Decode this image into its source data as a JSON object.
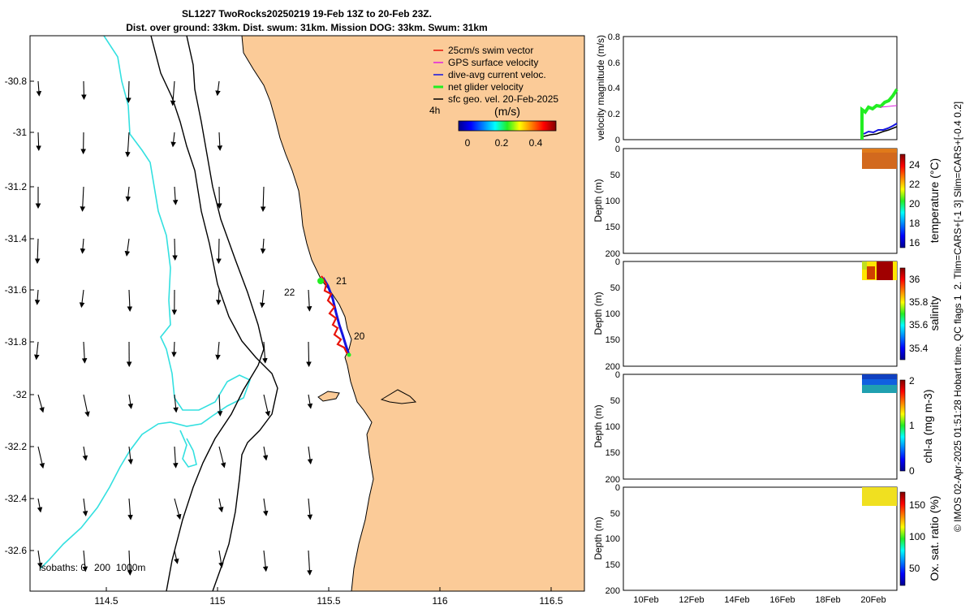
{
  "title": {
    "line1": "SL1227 TwoRocks20250219 19-Feb 13Z to 20-Feb 23Z.",
    "line2": "Dist. over ground: 33km. Dist. swum: 31km. Mission DOG: 33km. Swum: 31km"
  },
  "side_caption": "© IMOS 02-Apr-2025 01:51:28 Hobart time. QC flags 1  2. Tlim=CARS+[-1 3] Slim=CARS+[-0.4 0.2]",
  "map": {
    "lon_ticks": [
      114.5,
      115,
      115.5,
      116,
      116.5
    ],
    "lon_tick_labels": [
      "114.5",
      "115",
      "115.5",
      "116",
      "116.5"
    ],
    "lat_ticks": [
      -30.8,
      -31,
      -31.2,
      -31.4,
      -31.6,
      -31.8,
      -32,
      -32.2,
      -32.4,
      -32.6
    ],
    "lat_tick_labels": [
      "-30.8",
      "-31",
      "-31.2",
      "-31.4",
      "-31.6",
      "-31.8",
      "-32",
      "-32.2",
      "-32.4",
      "-32.6"
    ],
    "isobaths_label": "isobaths: 0   200  1000m",
    "land_color": "#fbcb98",
    "sea_color": "#ffffff",
    "isobath_1000_color": "#33e0e0",
    "legend": [
      {
        "label": "25cm/s swim vector",
        "color": "#e8140a"
      },
      {
        "label": "GPS surface velocity",
        "color": "#e020e0"
      },
      {
        "label": "dive-avg current veloc.",
        "color": "#1414e0"
      },
      {
        "label": "net glider velocity",
        "color": "#22ee22"
      },
      {
        "label": "sfc geo. vel. 20-Feb-2025",
        "color": "#000000"
      }
    ],
    "legend_time_label": "4h",
    "colorbar": {
      "label": "(m/s)",
      "ticks": [
        "0",
        "0.2",
        "0.4"
      ]
    },
    "day_labels": [
      {
        "text": "21",
        "lon": 115.555,
        "lat": -31.56
      },
      {
        "text": "22",
        "lon": 115.33,
        "lat": -31.6
      },
      {
        "text": "20",
        "lon": 115.62,
        "lat": -31.77
      }
    ]
  },
  "panels": [
    {
      "ylabel": "velocity magnitude (m/s)",
      "yticks": [
        "0",
        "0.2",
        "0.4",
        "0.6",
        "0.8"
      ]
    },
    {
      "ylabel": "Depth (m)",
      "yticks": [
        "0",
        "50",
        "100",
        "150",
        "200"
      ],
      "cbar_label": "temperature (°C)",
      "cbar_ticks": [
        "16",
        "18",
        "20",
        "22",
        "24"
      ]
    },
    {
      "ylabel": "Depth (m)",
      "yticks": [
        "0",
        "50",
        "100",
        "150",
        "200"
      ],
      "cbar_label": "salinity",
      "cbar_ticks": [
        "35.4",
        "35.6",
        "35.8",
        "36"
      ]
    },
    {
      "ylabel": "Depth (m)",
      "yticks": [
        "0",
        "50",
        "100",
        "150",
        "200"
      ],
      "cbar_label": "chl-a (mg m-3)",
      "cbar_ticks": [
        "0",
        "1",
        "2"
      ]
    },
    {
      "ylabel": "Depth (m)",
      "yticks": [
        "0",
        "50",
        "100",
        "150",
        "200"
      ],
      "cbar_label": "Ox. sat. ratio (%)",
      "cbar_ticks": [
        "50",
        "100",
        "150"
      ]
    }
  ],
  "time_axis": {
    "ticks": [
      "10Feb",
      "12Feb",
      "14Feb",
      "16Feb",
      "18Feb",
      "20Feb"
    ]
  }
}
